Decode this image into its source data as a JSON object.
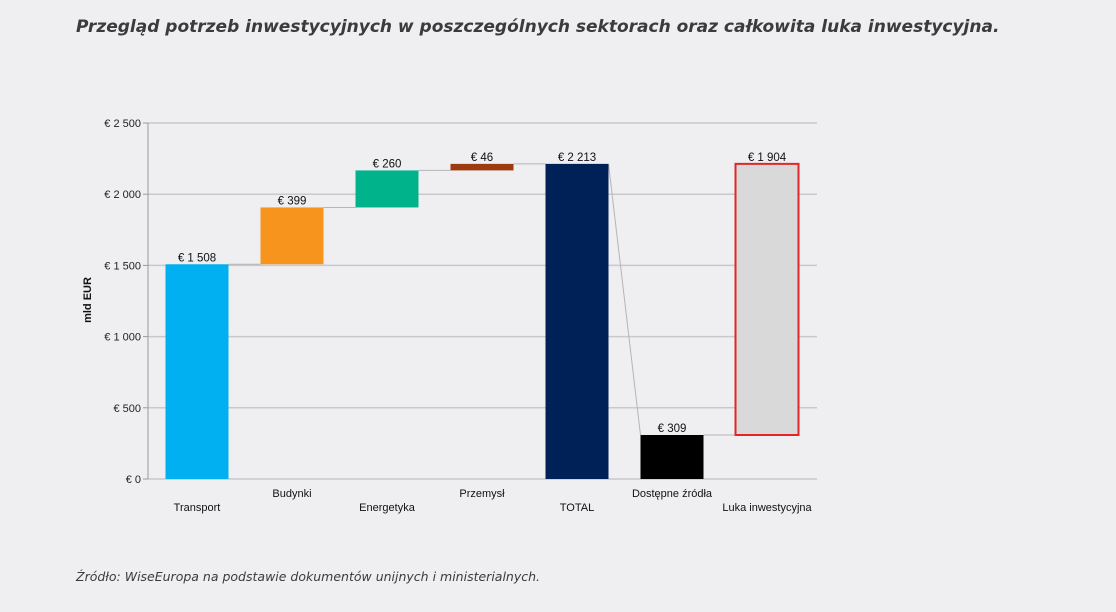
{
  "title": "Przegląd potrzeb inwestycyjnych w poszczególnych sektorach oraz całkowita luka inwestycyjna.",
  "source": "Źródło: WiseEuropa na podstawie dokumentów unijnych i ministerialnych.",
  "chart_data": {
    "type": "bar",
    "subtype": "waterfall",
    "ylabel": "mld EUR",
    "ylim": [
      0,
      2500
    ],
    "yticks": [
      0,
      500,
      1000,
      1500,
      2000,
      2500
    ],
    "ytick_labels": [
      "€ 0",
      "€ 500",
      "€ 1 000",
      "€ 1 500",
      "€ 2 000",
      "€ 2 500"
    ],
    "grid": true,
    "bars": [
      {
        "category": "Transport",
        "start": 0,
        "end": 1508,
        "label": "€ 1 508",
        "color": "#00b0f0",
        "outline": null
      },
      {
        "category": "Budynki",
        "start": 1508,
        "end": 1907,
        "label": "€  399",
        "color": "#f7941d",
        "outline": null
      },
      {
        "category": "Energetyka",
        "start": 1907,
        "end": 2167,
        "label": "€  260",
        "color": "#00b38a",
        "outline": null
      },
      {
        "category": "Przemysł",
        "start": 2167,
        "end": 2213,
        "label": "€  46",
        "color": "#9c3a10",
        "outline": null
      },
      {
        "category": "TOTAL",
        "start": 0,
        "end": 2213,
        "label": "€ 2 213",
        "color": "#002157",
        "outline": null
      },
      {
        "category": "Dostępne źródła",
        "start": 0,
        "end": 309,
        "label": "€  309",
        "color": "#000000",
        "outline": null
      },
      {
        "category": "Luka inwestycyjna",
        "start": 309,
        "end": 2213,
        "label": "€ 1 904",
        "color": "#d9d9d9",
        "outline": "#e0262b"
      }
    ]
  }
}
